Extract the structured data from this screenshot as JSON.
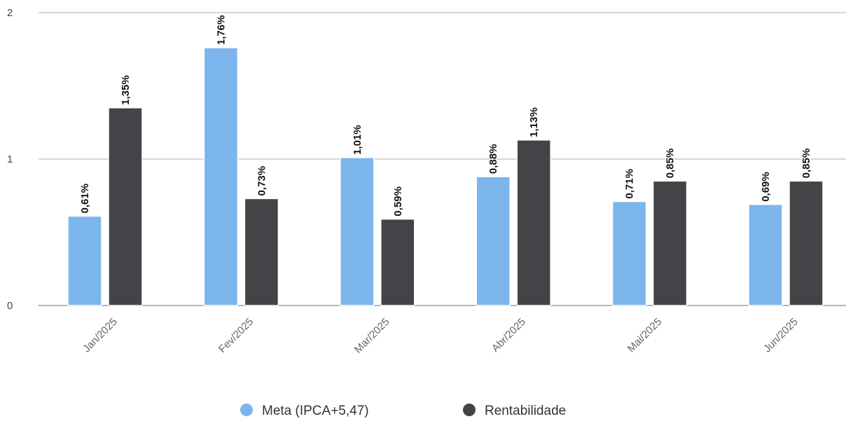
{
  "chart_data": {
    "type": "bar",
    "categories": [
      "Jan/2025",
      "Fev/2025",
      "Mar/2025",
      "Abr/2025",
      "Mai/2025",
      "Jun/2025"
    ],
    "series": [
      {
        "name": "Meta (IPCA+5,47)",
        "color": "#7cb5ec",
        "values": [
          0.61,
          1.76,
          1.01,
          0.88,
          0.71,
          0.69
        ],
        "labels": [
          "0,61%",
          "1,76%",
          "1,01%",
          "0,88%",
          "0,71%",
          "0,69%"
        ]
      },
      {
        "name": "Rentabilidade",
        "color": "#434348",
        "values": [
          1.35,
          0.73,
          0.59,
          1.13,
          0.85,
          0.85
        ],
        "labels": [
          "1,35%",
          "0,73%",
          "0,59%",
          "1,13%",
          "0,85%",
          "0,85%"
        ]
      }
    ],
    "y_ticks": [
      "0",
      "1",
      "2"
    ],
    "ylim": [
      0,
      2
    ],
    "grid": true,
    "legend_position": "bottom-center",
    "title": "",
    "xlabel": "",
    "ylabel": ""
  }
}
